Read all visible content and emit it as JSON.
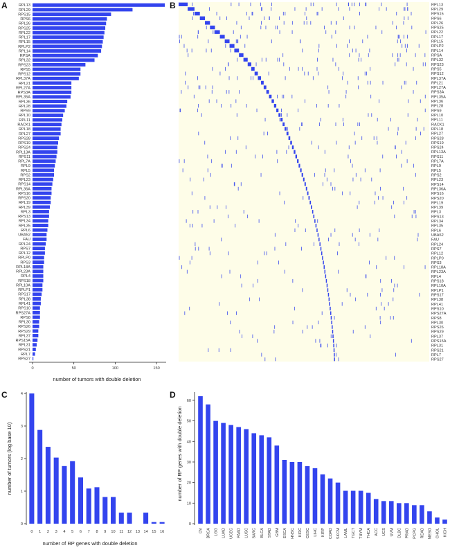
{
  "panels": {
    "a": {
      "label": "A"
    },
    "b": {
      "label": "B"
    },
    "c": {
      "label": "C"
    },
    "d": {
      "label": "D"
    }
  },
  "colors": {
    "bar": "#3344ee",
    "heatmap_bg": "#fefde8",
    "heatmap_fill": "#3344ee"
  },
  "chart_data": [
    {
      "id": "A",
      "type": "bar",
      "orientation": "horizontal",
      "xlabel": "number of tumors with double deletion",
      "xticks": [
        0,
        50,
        100,
        150
      ],
      "xlim": [
        0,
        160
      ],
      "categories": [
        "RPL13",
        "RPL29",
        "RPS15",
        "RPS6",
        "RPL26",
        "RPS25",
        "RPL22",
        "RPL17",
        "RPL15",
        "RPLP2",
        "RPL14",
        "RPSA",
        "RPL32",
        "RPS23",
        "RPS5",
        "RPS12",
        "RPL37A",
        "RPL21",
        "RPL27A",
        "RPS3A",
        "RPL35A",
        "RPL36",
        "RPL28",
        "RPS9",
        "RPL10",
        "RPL11",
        "RACK1",
        "RPL18",
        "RPL27",
        "RPS28",
        "RPS19",
        "RPS24",
        "RPL13A",
        "RPS11",
        "RPL7A",
        "RPL9",
        "RPL5",
        "RPS2",
        "RPL23",
        "RPS14",
        "RPL36A",
        "RPS16",
        "RPS20",
        "RPL19",
        "RPL39",
        "RPL3",
        "RPS13",
        "RPL34",
        "RPL35",
        "RPL6",
        "UBA52",
        "FAU",
        "RPL24",
        "RPS7",
        "RPL12",
        "RPLP0",
        "RPS3",
        "RPL18A",
        "RPL23A",
        "RPL4",
        "RPS18",
        "RPL10A",
        "RPLP1",
        "RPS17",
        "RPL38",
        "RPL41",
        "RPS10",
        "RPS27A",
        "RPS8",
        "RPL30",
        "RPS26",
        "RPS29",
        "RPL37",
        "RPS15A",
        "RPL31",
        "RPS21",
        "RPL7",
        "RPS27"
      ],
      "values": [
        160,
        121,
        95,
        90,
        89,
        88,
        87,
        86,
        85,
        84,
        83,
        79,
        75,
        64,
        58,
        58,
        56,
        47,
        47,
        47,
        46,
        42,
        41,
        39,
        37,
        36,
        35,
        34,
        34,
        32,
        31,
        30,
        30,
        29,
        28,
        27,
        26,
        26,
        25,
        24,
        23,
        23,
        22,
        22,
        21,
        20,
        20,
        19,
        19,
        18,
        17,
        17,
        16,
        15,
        15,
        14,
        14,
        13,
        13,
        13,
        13,
        12,
        12,
        11,
        10,
        10,
        9,
        9,
        9,
        8,
        8,
        7,
        7,
        6,
        5,
        4,
        3,
        1
      ]
    },
    {
      "id": "B",
      "type": "heatmap",
      "rows": [
        "RPL13",
        "RPL29",
        "RPS15",
        "RPS6",
        "RPL26",
        "RPS25",
        "RPL22",
        "RPL17",
        "RPL15",
        "RPLP2",
        "RPL14",
        "RPSA",
        "RPL32",
        "RPS23",
        "RPS5",
        "RPS12",
        "RPL37A",
        "RPL21",
        "RPL27A",
        "RPS3A",
        "RPL35A",
        "RPL36",
        "RPL28",
        "RPS9",
        "RPL10",
        "RPL11",
        "RACK1",
        "RPL18",
        "RPL27",
        "RPS28",
        "RPS19",
        "RPS24",
        "RPL13A",
        "RPS11",
        "RPL7A",
        "RPL9",
        "RPL5",
        "RPS2",
        "RPL23",
        "RPS14",
        "RPL36A",
        "RPS16",
        "RPS20",
        "RPL19",
        "RPL39",
        "RPL3",
        "RPS13",
        "RPL34",
        "RPL35",
        "RPL6",
        "UBA52",
        "FAU",
        "RPL24",
        "RPS7",
        "RPL12",
        "RPLP0",
        "RPS3",
        "RPL18A",
        "RPL23A",
        "RPL4",
        "RPS18",
        "RPL10A",
        "RPLP1",
        "RPS17",
        "RPL38",
        "RPL41",
        "RPS10",
        "RPS27A",
        "RPS8",
        "RPL30",
        "RPS26",
        "RPS29",
        "RPL37",
        "RPS15A",
        "RPL31",
        "RPS21",
        "RPL7",
        "RPS27"
      ]
    },
    {
      "id": "C",
      "type": "bar",
      "xlabel": "number of RP genes with double deletion",
      "ylabel": "number of tumors (log base 10)",
      "categories": [
        "0",
        "1",
        "2",
        "3",
        "4",
        "5",
        "6",
        "7",
        "8",
        "9",
        "10",
        "11",
        "12",
        "13",
        "14",
        "15",
        "16"
      ],
      "values": [
        4.0,
        2.88,
        2.36,
        2.03,
        1.77,
        1.92,
        1.42,
        1.08,
        1.12,
        0.82,
        0.82,
        0.34,
        0.34,
        0,
        0.34,
        0.05,
        0.05
      ],
      "yticks": [
        0,
        1,
        2,
        3,
        4
      ],
      "ylim": [
        0,
        4
      ]
    },
    {
      "id": "D",
      "type": "bar",
      "ylabel": "number of RP genes with double deletion",
      "categories": [
        "OV",
        "BRCA",
        "LGG",
        "LUAD",
        "UCEC",
        "PAAD",
        "LUSC",
        "SARC",
        "BLCA",
        "STAD",
        "GBM",
        "ESCA",
        "HNSC",
        "KIRC",
        "CESC",
        "LIHC",
        "KIRP",
        "COAD",
        "SKCM",
        "LAML",
        "TGCT",
        "THYM",
        "THCA",
        "ACC",
        "UCS",
        "UVM",
        "DLBC",
        "PRAD",
        "PCPG",
        "READ",
        "MESO",
        "CHOL",
        "KICH"
      ],
      "values": [
        62,
        58,
        50,
        49,
        48,
        47,
        46,
        44,
        43,
        42,
        38,
        31,
        30,
        30,
        28,
        27,
        24,
        22,
        20,
        16,
        16,
        16,
        15,
        12,
        11,
        11,
        10,
        10,
        9,
        9,
        6,
        3,
        2
      ],
      "yticks": [
        0,
        10,
        20,
        30,
        40,
        50,
        60
      ],
      "ylim": [
        0,
        62
      ]
    }
  ]
}
